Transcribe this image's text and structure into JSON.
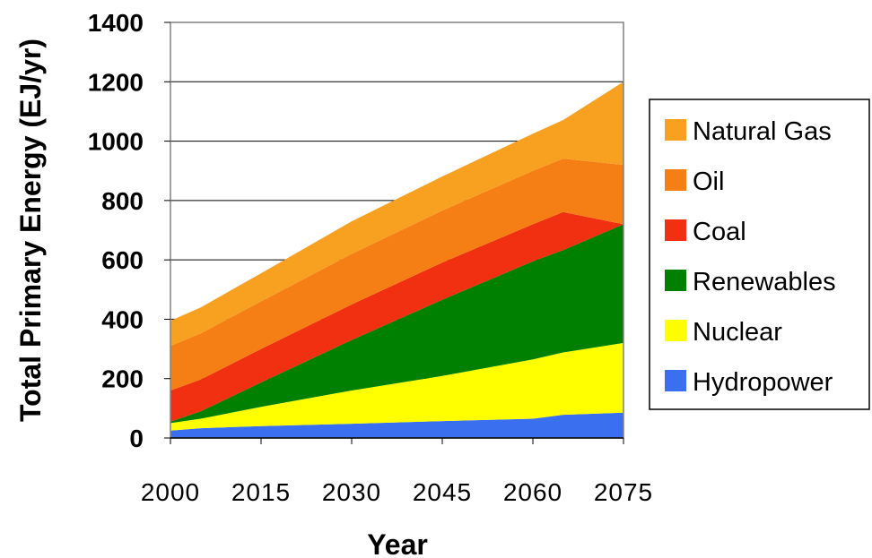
{
  "chart_data": {
    "type": "area",
    "stacked": true,
    "x": [
      2000,
      2005,
      2015,
      2030,
      2045,
      2060,
      2065,
      2075
    ],
    "xticks": [
      "2000",
      "2015",
      "2030",
      "2045",
      "2060",
      "2075"
    ],
    "xlabel": "Year",
    "ylabel": "Total Primary Energy (EJ/yr)",
    "ylim": [
      0,
      1400
    ],
    "yticks": [
      "0",
      "200",
      "400",
      "600",
      "800",
      "1000",
      "1200",
      "1400"
    ],
    "grid": "horizontal",
    "legend_position": "right",
    "series": [
      {
        "name": "Hydropower",
        "color": "#3a70f0",
        "values": [
          25,
          33,
          40,
          48,
          57,
          65,
          78,
          85
        ]
      },
      {
        "name": "Nuclear",
        "color": "#ffff00",
        "values": [
          25,
          32,
          65,
          112,
          152,
          200,
          210,
          235
        ]
      },
      {
        "name": "Renewables",
        "color": "#008000",
        "values": [
          5,
          25,
          82,
          170,
          257,
          330,
          345,
          400
        ]
      },
      {
        "name": "Coal",
        "color": "#f03010",
        "values": [
          105,
          107,
          113,
          120,
          125,
          125,
          128,
          0
        ]
      },
      {
        "name": "Oil",
        "color": "#f57f15",
        "values": [
          150,
          155,
          160,
          170,
          175,
          180,
          180,
          200
        ]
      },
      {
        "name": "Natural Gas",
        "color": "#f8a020",
        "values": [
          85,
          88,
          95,
          110,
          115,
          125,
          130,
          280
        ]
      }
    ]
  }
}
